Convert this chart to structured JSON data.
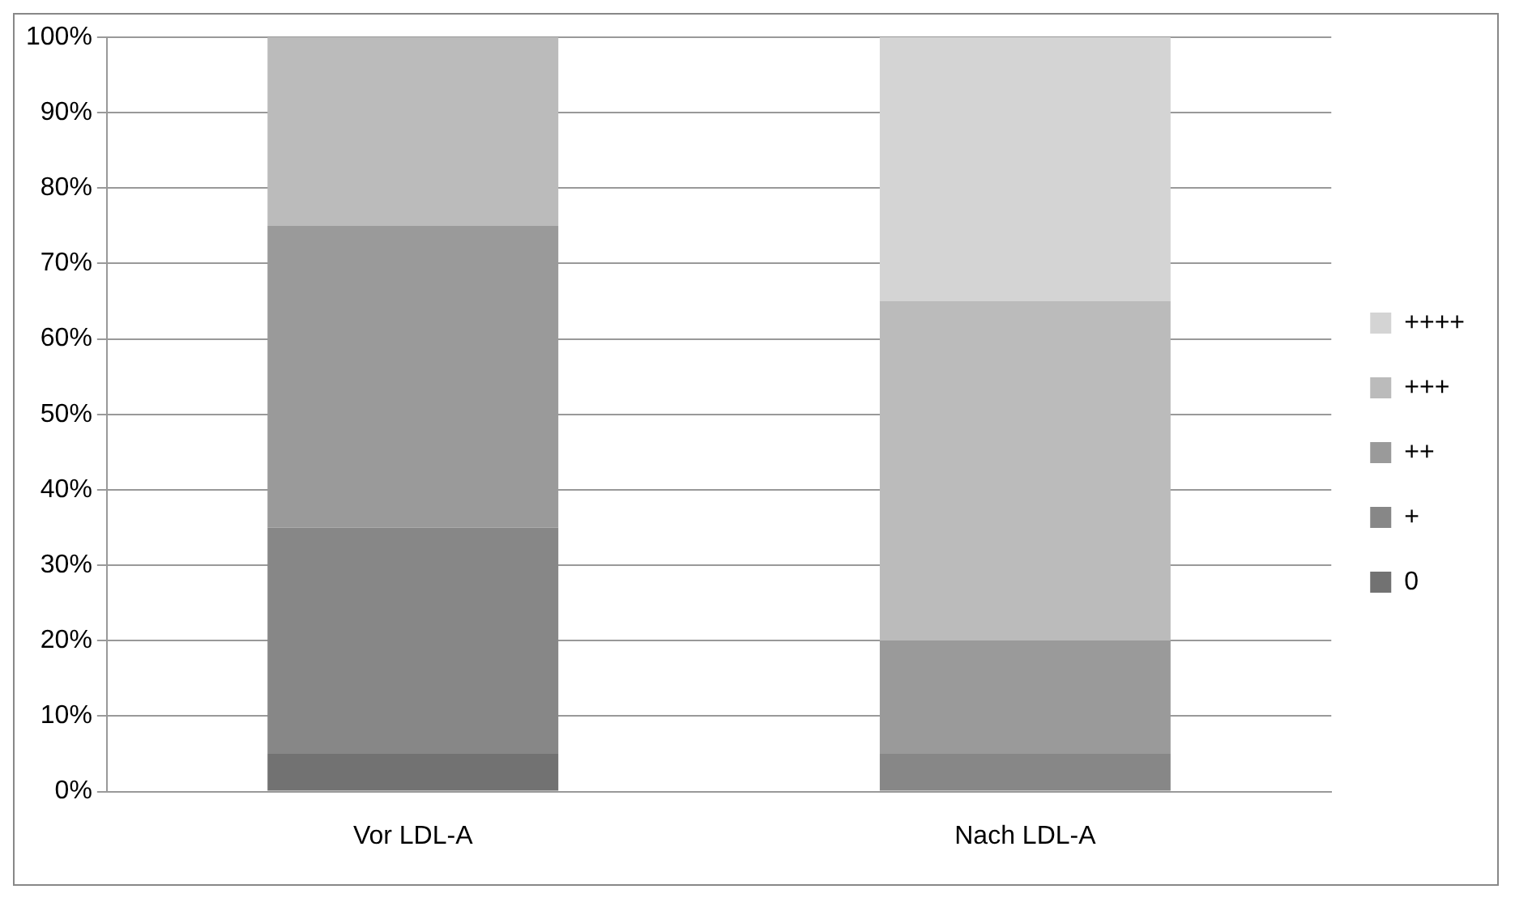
{
  "chart_data": {
    "type": "bar",
    "stacked": true,
    "categories": [
      "Vor LDL-A",
      "Nach LDL-A"
    ],
    "series": [
      {
        "name": "0",
        "color": "#727272",
        "values": [
          5,
          0
        ]
      },
      {
        "name": "+",
        "color": "#878787",
        "values": [
          30,
          5
        ]
      },
      {
        "name": "++",
        "color": "#9a9a9a",
        "values": [
          40,
          15
        ]
      },
      {
        "name": "+++",
        "color": "#bbbbbb",
        "values": [
          25,
          45
        ]
      },
      {
        "name": "++++",
        "color": "#d4d4d4",
        "values": [
          0,
          35
        ]
      }
    ],
    "ylim": [
      0,
      100
    ],
    "yticks": [
      {
        "value": 0,
        "label": "0%"
      },
      {
        "value": 10,
        "label": "10%"
      },
      {
        "value": 20,
        "label": "20%"
      },
      {
        "value": 30,
        "label": "30%"
      },
      {
        "value": 40,
        "label": "40%"
      },
      {
        "value": 50,
        "label": "50%"
      },
      {
        "value": 60,
        "label": "60%"
      },
      {
        "value": 70,
        "label": "70%"
      },
      {
        "value": 80,
        "label": "80%"
      },
      {
        "value": 90,
        "label": "90%"
      },
      {
        "value": 100,
        "label": "100%"
      }
    ],
    "grid": "y",
    "legend": "right"
  }
}
